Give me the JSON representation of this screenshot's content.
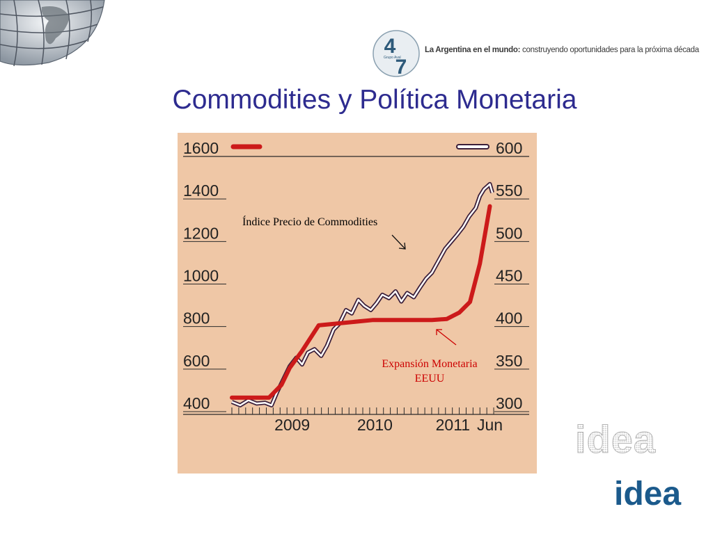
{
  "header": {
    "tagline_bold": "La Argentina en el mundo:",
    "tagline_rest": " construyendo oportunidades para la próxima década",
    "logo_number_top": "4",
    "logo_number_bottom": "7",
    "logo_caption": "Grupo Aval"
  },
  "title": "Commodities y Política Monetaria",
  "brand": {
    "outline": "idea",
    "solid": "idea",
    "color": "#1b5a8c"
  },
  "colors": {
    "title": "#2d2b8f",
    "chart_bg": "#efc7a6",
    "monetary": "#cc1a1a",
    "commodity": "#3b1f3a"
  },
  "chart_data": {
    "type": "line",
    "x_tick_labels": [
      "2009",
      "2010",
      "2011",
      "Jun"
    ],
    "left_axis": {
      "ylim": [
        400,
        1600
      ],
      "ticks": [
        400,
        600,
        800,
        1000,
        1200,
        1400,
        1600
      ]
    },
    "right_axis": {
      "ylim": [
        300,
        600
      ],
      "ticks": [
        300,
        350,
        400,
        450,
        500,
        550,
        600
      ]
    },
    "annotations": {
      "commodities": "Índice Precio de Commodities",
      "monetary": "Expansión Monetaria EEUU"
    },
    "series": [
      {
        "key": "monetary",
        "axis": "left",
        "x": [
          2008.3,
          2008.55,
          2008.75,
          2008.9,
          2009.0,
          2009.15,
          2009.35,
          2010.0,
          2010.3,
          2010.5,
          2010.72,
          2010.9,
          2011.05,
          2011.18,
          2011.3,
          2011.42
        ],
        "values": [
          420,
          420,
          420,
          480,
          560,
          640,
          760,
          785,
          785,
          785,
          785,
          790,
          820,
          870,
          1050,
          1320
        ]
      },
      {
        "key": "commodity",
        "axis": "right",
        "x": [
          2008.3,
          2008.4,
          2008.5,
          2008.6,
          2008.7,
          2008.78,
          2008.85,
          2008.93,
          2009.0,
          2009.08,
          2009.15,
          2009.22,
          2009.3,
          2009.38,
          2009.45,
          2009.53,
          2009.6,
          2009.68,
          2009.75,
          2009.83,
          2009.9,
          2009.98,
          2010.05,
          2010.12,
          2010.2,
          2010.28,
          2010.35,
          2010.42,
          2010.5,
          2010.58,
          2010.65,
          2010.72,
          2010.8,
          2010.88,
          2010.95,
          2011.02,
          2011.1,
          2011.17,
          2011.25,
          2011.3,
          2011.35,
          2011.42,
          2011.45
        ],
        "values": [
          300,
          296,
          302,
          298,
          299,
          296,
          312,
          328,
          342,
          352,
          344,
          358,
          362,
          354,
          366,
          385,
          392,
          408,
          404,
          420,
          413,
          408,
          416,
          426,
          422,
          430,
          418,
          428,
          423,
          435,
          445,
          452,
          466,
          480,
          488,
          496,
          506,
          518,
          528,
          542,
          550,
          556,
          546
        ]
      }
    ]
  }
}
